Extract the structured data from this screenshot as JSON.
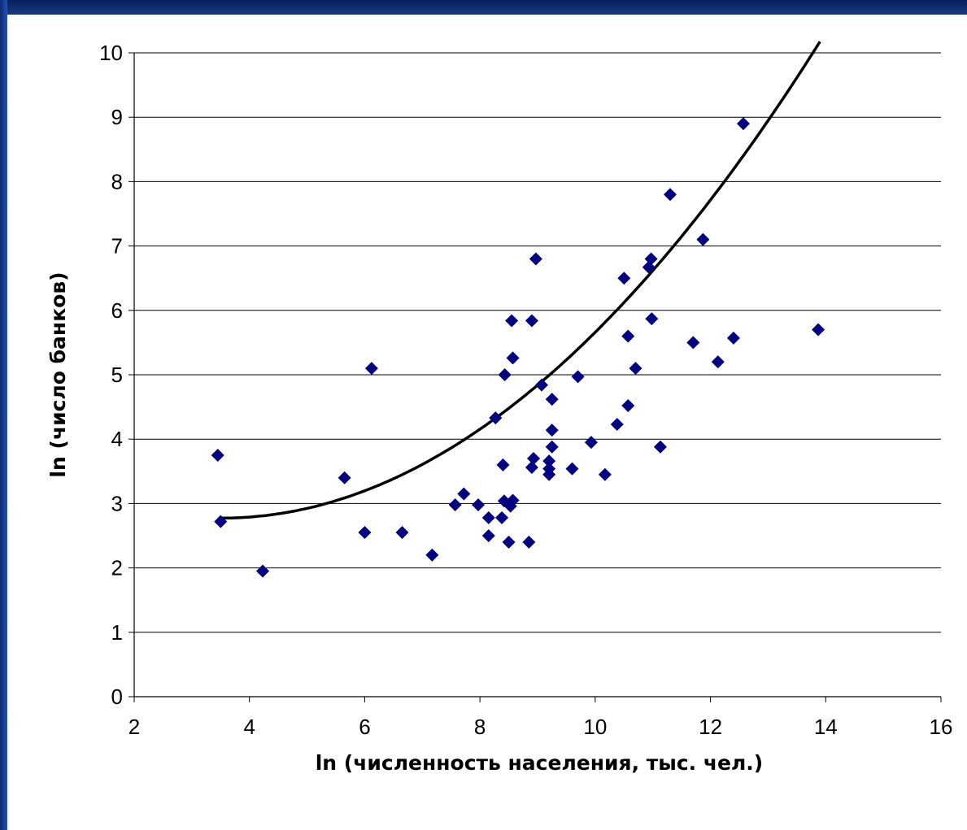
{
  "chart_data": {
    "type": "scatter",
    "title": "",
    "xlabel": "ln (численность населения, тыс. чел.)",
    "ylabel": "ln (число банков)",
    "xlim": [
      2,
      16
    ],
    "ylim": [
      0,
      10
    ],
    "x_ticks": [
      "2",
      "4",
      "6",
      "8",
      "10",
      "12",
      "14",
      "16"
    ],
    "y_ticks": [
      "0",
      "1",
      "2",
      "3",
      "4",
      "5",
      "6",
      "7",
      "8",
      "9",
      "10"
    ],
    "grid": "horizontal",
    "legend": "none",
    "marker_color": "#000080",
    "trend_color": "#000000",
    "points": [
      [
        3.45,
        3.75
      ],
      [
        3.5,
        2.72
      ],
      [
        4.23,
        1.95
      ],
      [
        5.65,
        3.4
      ],
      [
        6.0,
        2.55
      ],
      [
        6.12,
        5.1
      ],
      [
        6.65,
        2.55
      ],
      [
        7.17,
        2.2
      ],
      [
        7.57,
        2.98
      ],
      [
        7.72,
        3.15
      ],
      [
        7.97,
        2.98
      ],
      [
        8.15,
        2.78
      ],
      [
        8.15,
        2.5
      ],
      [
        8.27,
        4.33
      ],
      [
        8.38,
        2.78
      ],
      [
        8.4,
        3.6
      ],
      [
        8.43,
        5.0
      ],
      [
        8.42,
        3.04
      ],
      [
        8.5,
        2.4
      ],
      [
        8.55,
        5.84
      ],
      [
        8.53,
        2.96
      ],
      [
        8.57,
        3.05
      ],
      [
        8.57,
        5.26
      ],
      [
        8.85,
        2.4
      ],
      [
        8.9,
        5.84
      ],
      [
        8.9,
        3.56
      ],
      [
        8.93,
        3.7
      ],
      [
        8.97,
        6.8
      ],
      [
        9.07,
        4.84
      ],
      [
        9.2,
        3.66
      ],
      [
        9.2,
        3.54
      ],
      [
        9.2,
        3.45
      ],
      [
        9.25,
        3.88
      ],
      [
        9.25,
        4.14
      ],
      [
        9.25,
        4.62
      ],
      [
        9.6,
        3.54
      ],
      [
        9.7,
        4.97
      ],
      [
        9.93,
        3.95
      ],
      [
        10.17,
        3.45
      ],
      [
        10.38,
        4.23
      ],
      [
        10.5,
        6.5
      ],
      [
        10.57,
        5.6
      ],
      [
        10.57,
        4.52
      ],
      [
        10.7,
        5.1
      ],
      [
        10.93,
        6.67
      ],
      [
        10.97,
        6.8
      ],
      [
        10.98,
        5.87
      ],
      [
        11.13,
        3.88
      ],
      [
        11.3,
        7.8
      ],
      [
        11.7,
        5.5
      ],
      [
        11.87,
        7.1
      ],
      [
        12.13,
        5.2
      ],
      [
        12.4,
        5.57
      ],
      [
        12.57,
        8.9
      ],
      [
        13.87,
        5.7
      ]
    ],
    "trendline": {
      "type": "polynomial",
      "x_range": [
        3.5,
        13.9
      ],
      "coefficients": [
        3.62,
        -0.482,
        0.0686
      ]
    }
  }
}
